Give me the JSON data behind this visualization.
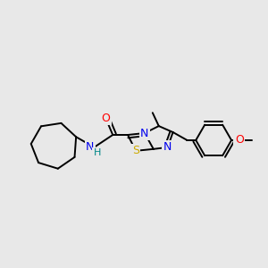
{
  "background_color": "#e8e8e8",
  "atom_colors": {
    "N": "#0000ee",
    "S": "#ccaa00",
    "O": "#ff0000",
    "C": "#000000",
    "H": "#008888"
  },
  "bond_width": 1.4,
  "font_size": 9,
  "figsize": [
    3.0,
    3.0
  ],
  "dpi": 100
}
